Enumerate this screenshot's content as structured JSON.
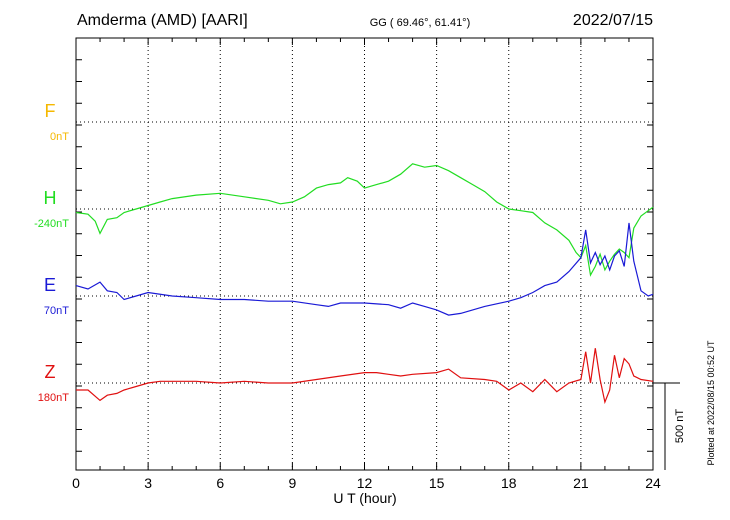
{
  "header": {
    "station": "Amderma (AMD)  [AARI]",
    "coords": "GG ( 69.46°,  61.41°)",
    "date": "2022/07/15"
  },
  "side_note": "Plotted at 2022/08/15 00:52 UT",
  "chart_data": {
    "type": "line",
    "xlabel": "U T (hour)",
    "xlim": [
      0,
      24
    ],
    "x_ticks": [
      "0",
      "3",
      "6",
      "9",
      "12",
      "15",
      "18",
      "21",
      "24"
    ],
    "scale_bar": "500 nT",
    "series": [
      {
        "name": "F",
        "baseline_label": "0nT",
        "color": "#f5b800",
        "x": [],
        "values": []
      },
      {
        "name": "H",
        "baseline_label": "-240nT",
        "color": "#22dd22",
        "x": [
          0,
          0.5,
          0.8,
          1.0,
          1.3,
          1.7,
          2.0,
          2.5,
          3.0,
          3.5,
          4.0,
          5.0,
          6.0,
          7.0,
          8.0,
          8.5,
          9.0,
          9.5,
          10.0,
          10.5,
          11.0,
          11.3,
          11.7,
          12.0,
          12.5,
          13.0,
          13.5,
          14.0,
          14.5,
          15.0,
          15.5,
          16.0,
          16.5,
          17.0,
          17.5,
          18.0,
          18.5,
          19.0,
          19.5,
          20.0,
          20.5,
          20.8,
          21.0,
          21.2,
          21.4,
          21.6,
          21.8,
          22.0,
          22.2,
          22.4,
          22.6,
          22.8,
          23.0,
          23.2,
          23.5,
          23.8,
          24.0
        ],
        "values": [
          -20,
          -30,
          -70,
          -140,
          -60,
          -50,
          -20,
          0,
          20,
          40,
          60,
          80,
          90,
          70,
          50,
          30,
          40,
          70,
          120,
          140,
          150,
          180,
          160,
          120,
          140,
          160,
          200,
          260,
          240,
          250,
          220,
          180,
          140,
          100,
          40,
          0,
          -10,
          -20,
          -80,
          -120,
          -180,
          -250,
          -280,
          -210,
          -380,
          -330,
          -260,
          -350,
          -300,
          -260,
          -230,
          -250,
          -280,
          -110,
          -40,
          -10,
          10
        ]
      },
      {
        "name": "E",
        "baseline_label": "70nT",
        "color": "#1a1ad6",
        "x": [
          0,
          0.5,
          1.0,
          1.3,
          1.7,
          2.0,
          2.5,
          3.0,
          4.0,
          5.0,
          6.0,
          7.0,
          8.0,
          9.0,
          10.0,
          10.5,
          11.0,
          12.0,
          13.0,
          13.5,
          14.0,
          14.5,
          15.0,
          15.5,
          16.0,
          17.0,
          18.0,
          18.5,
          19.0,
          19.5,
          20.0,
          20.5,
          21.0,
          21.2,
          21.4,
          21.6,
          21.8,
          22.0,
          22.2,
          22.4,
          22.6,
          22.8,
          23.0,
          23.2,
          23.5,
          23.8,
          24.0
        ],
        "values": [
          60,
          40,
          80,
          30,
          20,
          -20,
          0,
          20,
          0,
          -10,
          -20,
          -20,
          -30,
          -30,
          -50,
          -60,
          -40,
          -40,
          -50,
          -70,
          -40,
          -60,
          -80,
          -110,
          -100,
          -60,
          -30,
          -10,
          20,
          60,
          80,
          140,
          220,
          380,
          190,
          250,
          180,
          230,
          150,
          230,
          260,
          170,
          420,
          200,
          30,
          0,
          10
        ]
      },
      {
        "name": "Z",
        "baseline_label": "180nT",
        "color": "#e01010",
        "x": [
          0,
          0.5,
          1.0,
          1.3,
          1.7,
          2.0,
          2.5,
          3.0,
          3.5,
          4.0,
          5.0,
          6.0,
          7.0,
          8.0,
          9.0,
          10.0,
          11.0,
          12.0,
          12.5,
          13.0,
          13.5,
          14.0,
          15.0,
          15.5,
          16.0,
          17.0,
          17.5,
          18.0,
          18.5,
          19.0,
          19.5,
          20.0,
          20.5,
          21.0,
          21.2,
          21.4,
          21.6,
          21.8,
          22.0,
          22.2,
          22.4,
          22.6,
          22.8,
          23.0,
          23.2,
          23.5,
          24.0
        ],
        "values": [
          -40,
          -40,
          -100,
          -70,
          -60,
          -40,
          -20,
          0,
          10,
          10,
          10,
          0,
          10,
          0,
          0,
          20,
          40,
          60,
          60,
          50,
          40,
          50,
          60,
          80,
          30,
          20,
          10,
          -40,
          0,
          -50,
          20,
          -50,
          0,
          20,
          180,
          0,
          200,
          20,
          -110,
          -40,
          160,
          30,
          140,
          110,
          40,
          20,
          10
        ]
      }
    ]
  }
}
